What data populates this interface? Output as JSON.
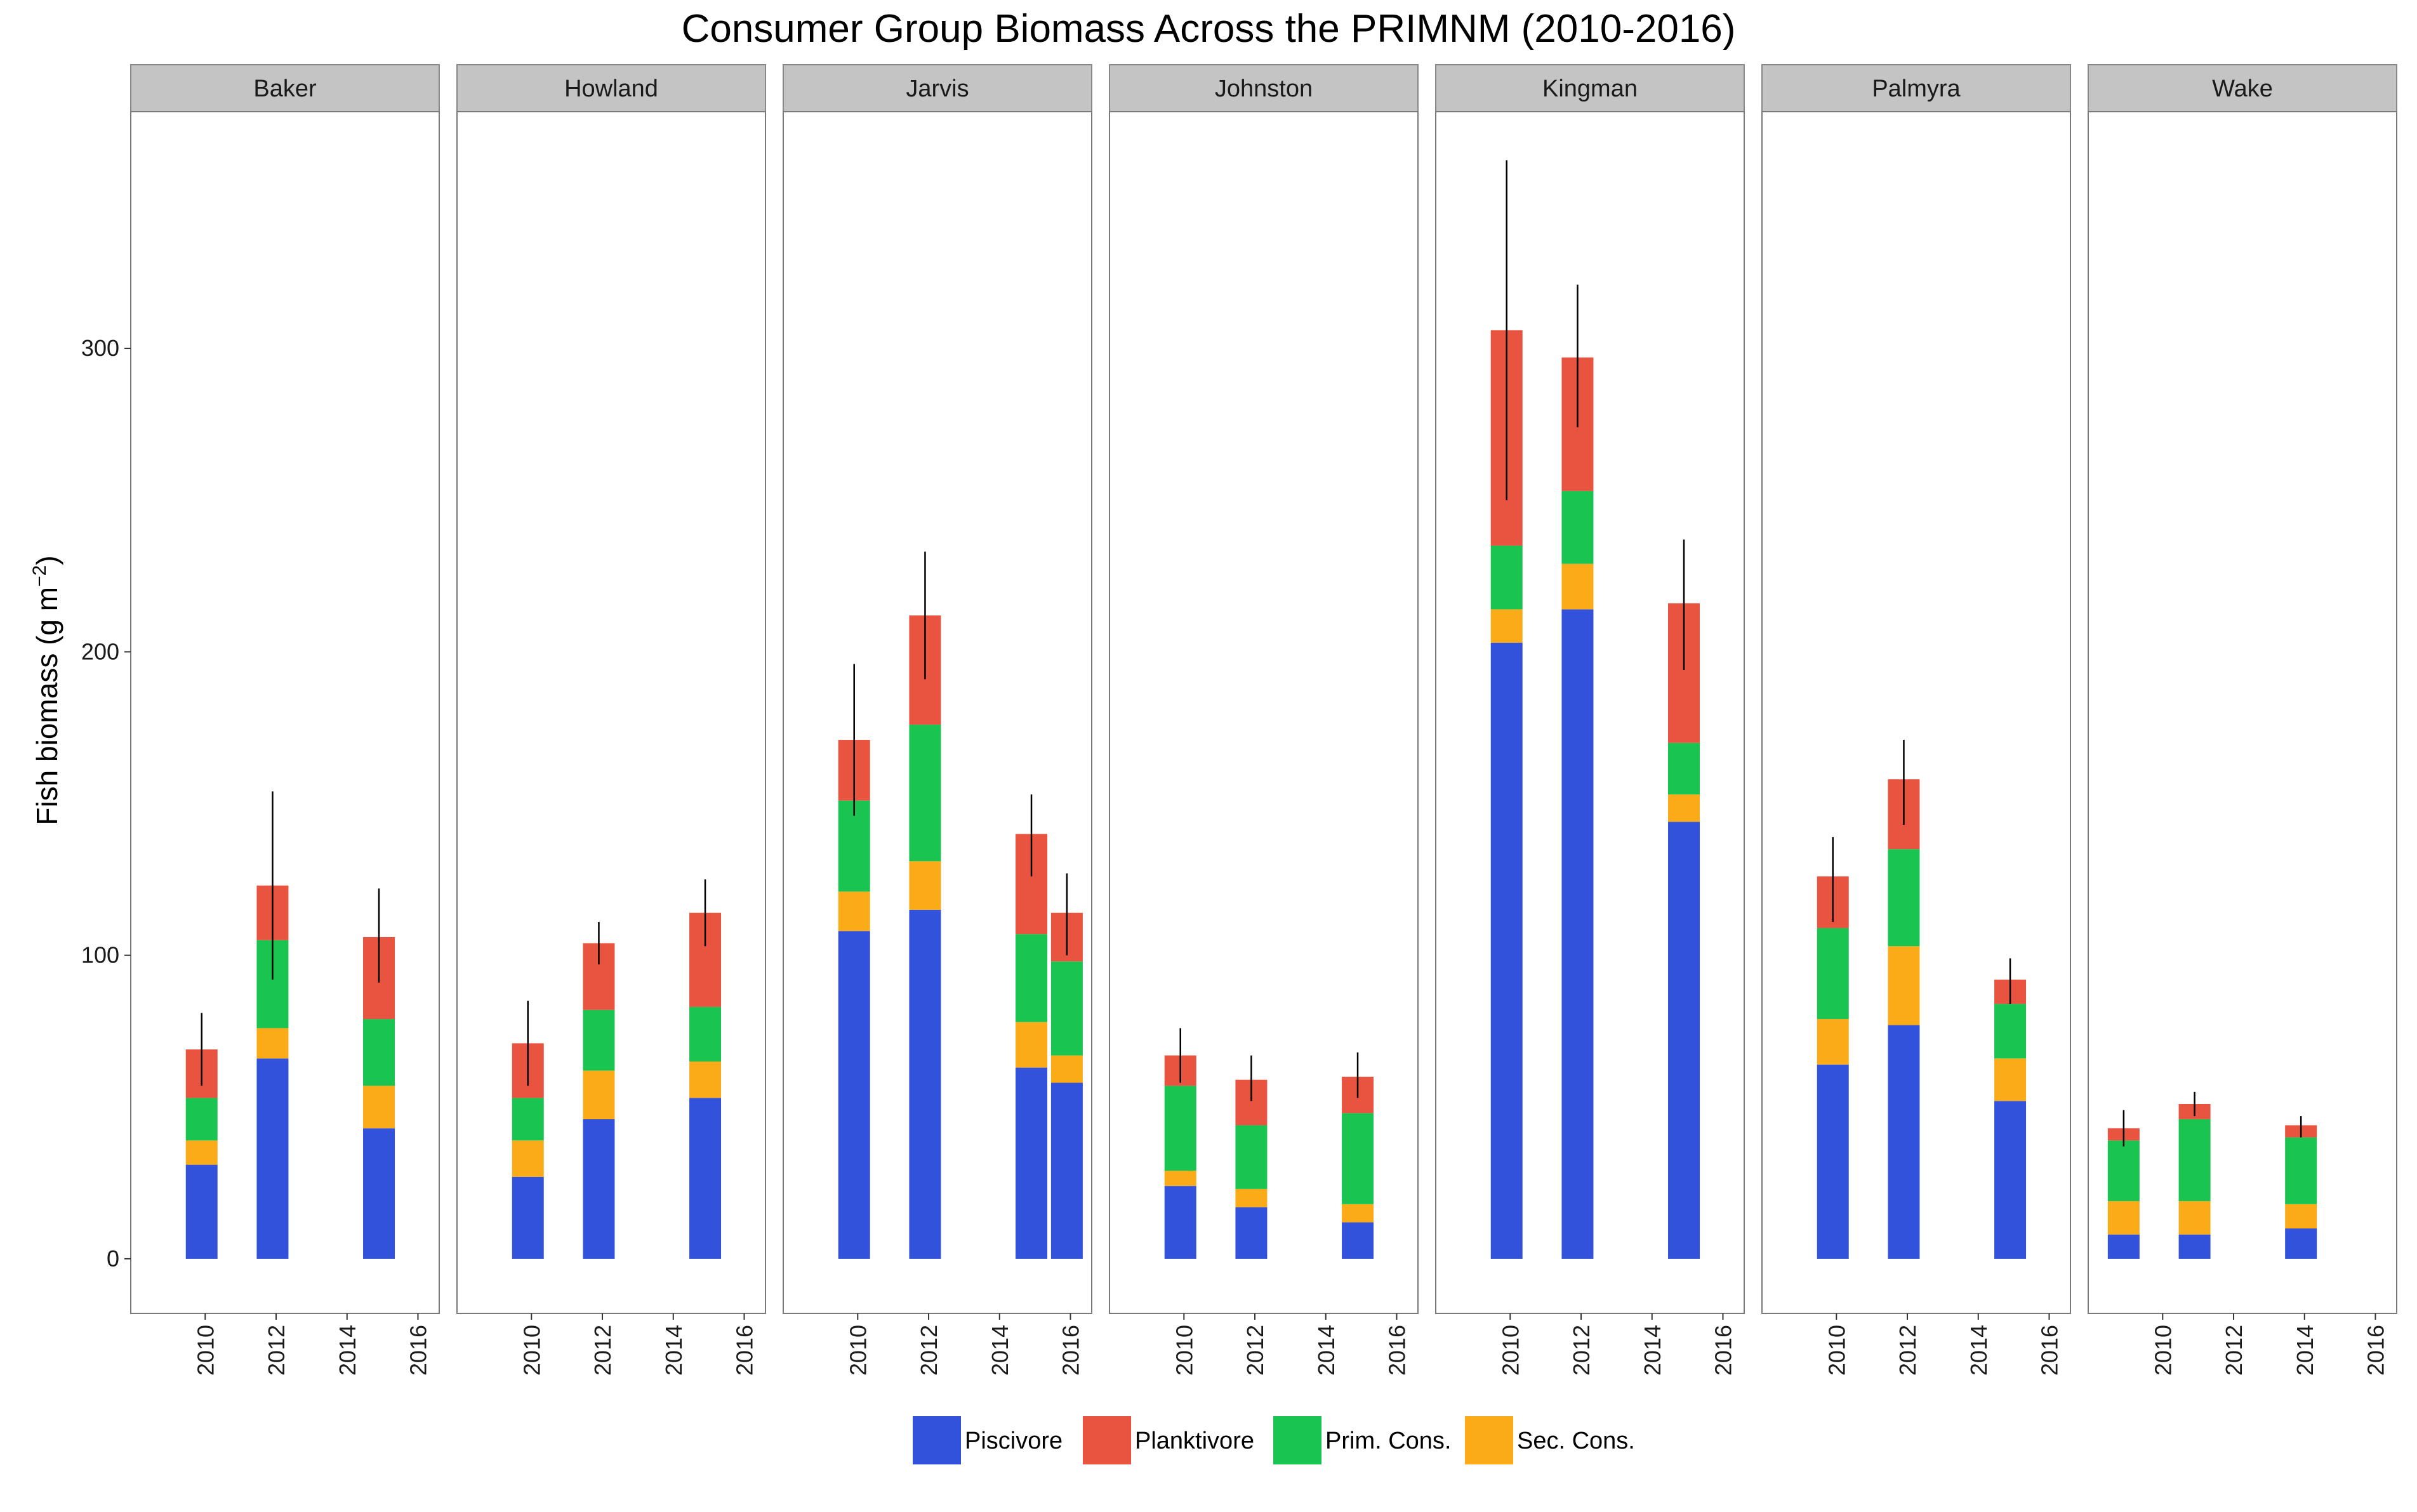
{
  "chart_data": {
    "type": "bar",
    "stacked": true,
    "title": "Consumer Group Biomass Across the PRIMNM (2010-2016)",
    "ylabel_main": "Fish biomass (g m",
    "ylabel_sup": "−2",
    "ylabel_close": ")",
    "xlabel": "",
    "ylim": [
      -18,
      378
    ],
    "yticks": [
      0,
      100,
      200,
      300
    ],
    "xlim": [
      2007.9,
      2016.6
    ],
    "xticks": [
      2010,
      2012,
      2014,
      2016
    ],
    "grid": false,
    "legend_position": "bottom",
    "colors": {
      "Piscivore": "#3352DB",
      "Planktivore": "#E8543F",
      "Prim. Cons.": "#1AC451",
      "Sec. Cons.": "#FBAB17"
    },
    "stack_order": [
      "Piscivore",
      "Sec. Cons.",
      "Prim. Cons.",
      "Planktivore"
    ],
    "legend_order": [
      "Piscivore",
      "Planktivore",
      "Prim. Cons.",
      "Sec. Cons."
    ],
    "panels": [
      {
        "name": "Baker",
        "bars": [
          {
            "year": 2009.9,
            "Piscivore": 31,
            "Sec. Cons.": 8,
            "Prim. Cons.": 14,
            "Planktivore": 16,
            "err": [
              57,
              81
            ]
          },
          {
            "year": 2011.9,
            "Piscivore": 66,
            "Sec. Cons.": 10,
            "Prim. Cons.": 29,
            "Planktivore": 18,
            "err": [
              92,
              154
            ]
          },
          {
            "year": 2014.9,
            "Piscivore": 43,
            "Sec. Cons.": 14,
            "Prim. Cons.": 22,
            "Planktivore": 27,
            "err": [
              91,
              122
            ]
          }
        ]
      },
      {
        "name": "Howland",
        "bars": [
          {
            "year": 2009.9,
            "Piscivore": 27,
            "Sec. Cons.": 12,
            "Prim. Cons.": 14,
            "Planktivore": 18,
            "err": [
              57,
              85
            ]
          },
          {
            "year": 2011.9,
            "Piscivore": 46,
            "Sec. Cons.": 16,
            "Prim. Cons.": 20,
            "Planktivore": 22,
            "err": [
              97,
              111
            ]
          },
          {
            "year": 2014.9,
            "Piscivore": 53,
            "Sec. Cons.": 12,
            "Prim. Cons.": 18,
            "Planktivore": 31,
            "err": [
              103,
              125
            ]
          }
        ]
      },
      {
        "name": "Jarvis",
        "bars": [
          {
            "year": 2009.9,
            "Piscivore": 108,
            "Sec. Cons.": 13,
            "Prim. Cons.": 30,
            "Planktivore": 20,
            "err": [
              146,
              196
            ]
          },
          {
            "year": 2011.9,
            "Piscivore": 115,
            "Sec. Cons.": 16,
            "Prim. Cons.": 45,
            "Planktivore": 36,
            "err": [
              191,
              233
            ]
          },
          {
            "year": 2014.9,
            "Piscivore": 63,
            "Sec. Cons.": 15,
            "Prim. Cons.": 29,
            "Planktivore": 33,
            "err": [
              126,
              153
            ]
          },
          {
            "year": 2015.9,
            "Piscivore": 58,
            "Sec. Cons.": 9,
            "Prim. Cons.": 31,
            "Planktivore": 16,
            "err": [
              100,
              127
            ]
          }
        ]
      },
      {
        "name": "Johnston",
        "bars": [
          {
            "year": 2009.9,
            "Piscivore": 24,
            "Sec. Cons.": 5,
            "Prim. Cons.": 28,
            "Planktivore": 10,
            "err": [
              58,
              76
            ]
          },
          {
            "year": 2011.9,
            "Piscivore": 17,
            "Sec. Cons.": 6,
            "Prim. Cons.": 21,
            "Planktivore": 15,
            "err": [
              52,
              67
            ]
          },
          {
            "year": 2014.9,
            "Piscivore": 12,
            "Sec. Cons.": 6,
            "Prim. Cons.": 30,
            "Planktivore": 12,
            "err": [
              53,
              68
            ]
          }
        ]
      },
      {
        "name": "Kingman",
        "bars": [
          {
            "year": 2009.9,
            "Piscivore": 203,
            "Sec. Cons.": 11,
            "Prim. Cons.": 21,
            "Planktivore": 71,
            "err": [
              250,
              362
            ]
          },
          {
            "year": 2011.9,
            "Piscivore": 214,
            "Sec. Cons.": 15,
            "Prim. Cons.": 24,
            "Planktivore": 44,
            "err": [
              274,
              321
            ]
          },
          {
            "year": 2014.9,
            "Piscivore": 144,
            "Sec. Cons.": 9,
            "Prim. Cons.": 17,
            "Planktivore": 46,
            "err": [
              194,
              237
            ]
          }
        ]
      },
      {
        "name": "Palmyra",
        "bars": [
          {
            "year": 2009.9,
            "Piscivore": 64,
            "Sec. Cons.": 15,
            "Prim. Cons.": 30,
            "Planktivore": 17,
            "err": [
              111,
              139
            ]
          },
          {
            "year": 2011.9,
            "Piscivore": 77,
            "Sec. Cons.": 26,
            "Prim. Cons.": 32,
            "Planktivore": 23,
            "err": [
              143,
              171
            ]
          },
          {
            "year": 2014.9,
            "Piscivore": 52,
            "Sec. Cons.": 14,
            "Prim. Cons.": 18,
            "Planktivore": 8,
            "err": [
              84,
              99
            ]
          }
        ]
      },
      {
        "name": "Wake",
        "bars": [
          {
            "year": 2008.9,
            "Piscivore": 8,
            "Sec. Cons.": 11,
            "Prim. Cons.": 20,
            "Planktivore": 4,
            "err": [
              37,
              49
            ]
          },
          {
            "year": 2010.9,
            "Piscivore": 8,
            "Sec. Cons.": 11,
            "Prim. Cons.": 27,
            "Planktivore": 5,
            "err": [
              47,
              55
            ]
          },
          {
            "year": 2013.9,
            "Piscivore": 10,
            "Sec. Cons.": 8,
            "Prim. Cons.": 22,
            "Planktivore": 4,
            "err": [
              40,
              47
            ]
          }
        ]
      }
    ]
  }
}
